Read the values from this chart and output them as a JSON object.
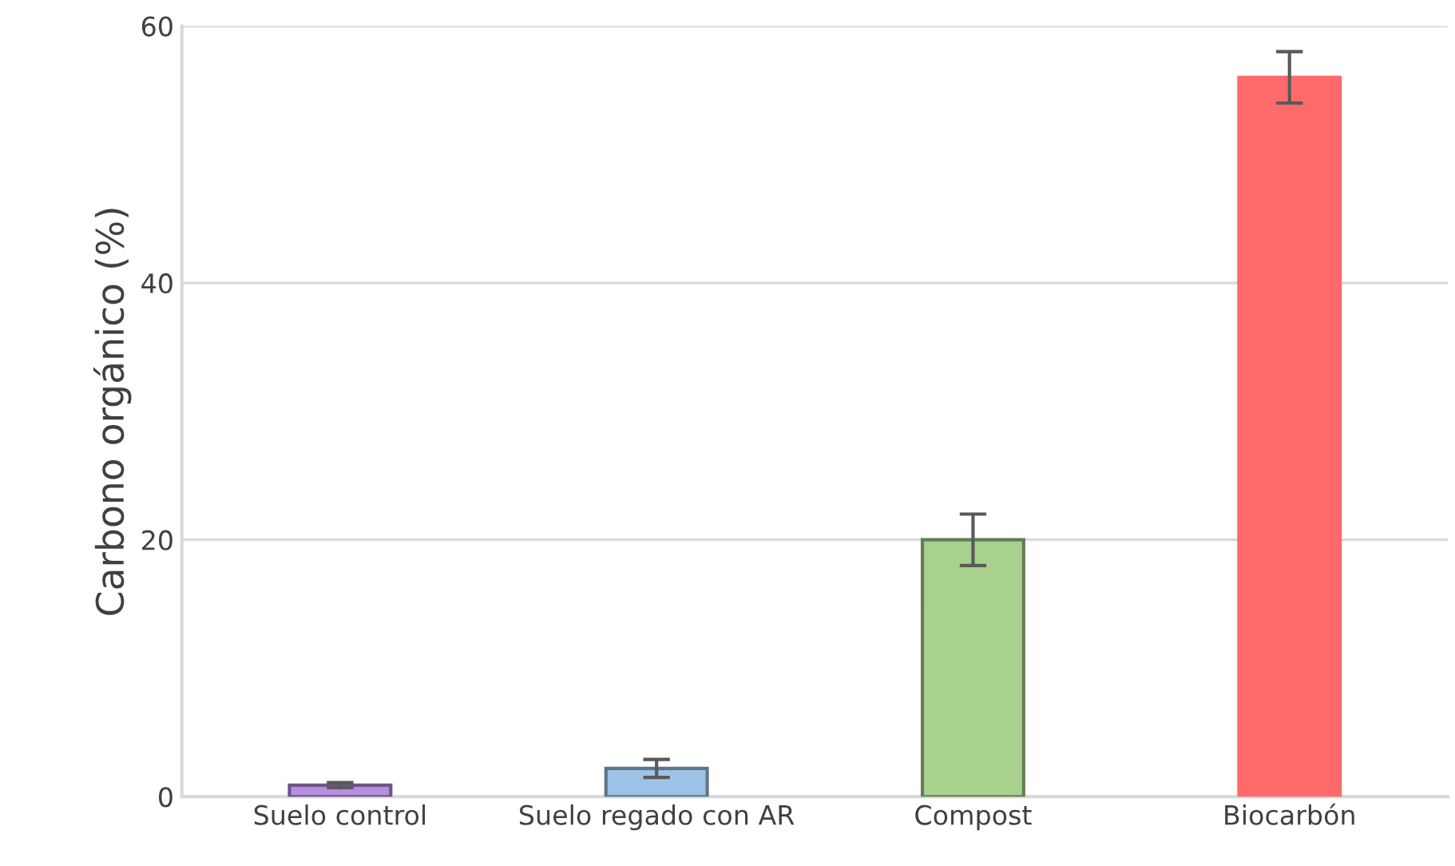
{
  "chart_data": {
    "type": "bar",
    "ylabel": "Carbono orgánico (%)",
    "categories": [
      "Suelo control",
      "Suelo regado con AR",
      "Compost",
      "Biocarbón"
    ],
    "values": [
      0.9,
      2.2,
      20,
      56
    ],
    "errors": [
      0.2,
      0.7,
      2,
      2
    ],
    "colors": [
      "#b88ee0",
      "#9dc3e6",
      "#a9d18e",
      "#ff6b6b"
    ],
    "ylim": [
      0,
      60
    ],
    "yticks": [
      0,
      20,
      40,
      60
    ],
    "grid": "y"
  }
}
